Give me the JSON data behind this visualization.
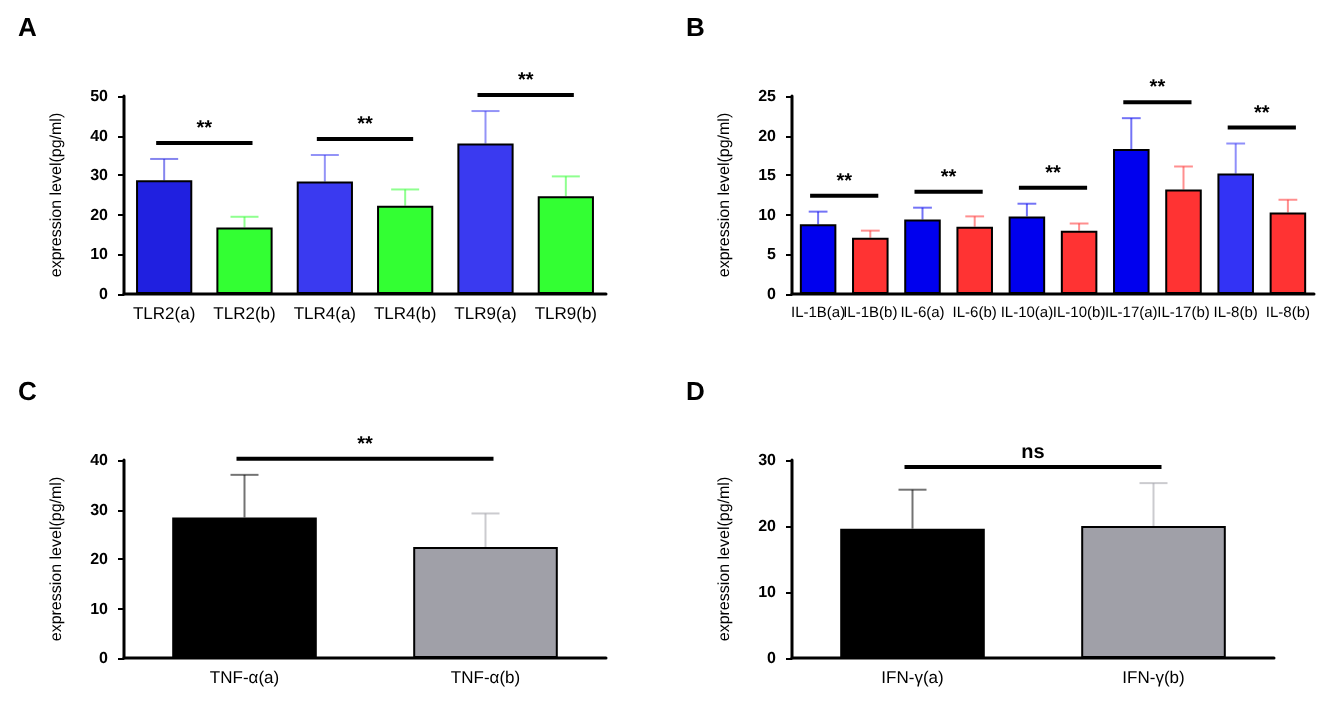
{
  "chart_data": [
    {
      "type": "bar",
      "title": "A",
      "ylabel": "expression level(pg/ml)",
      "categories": [
        "TLR2(a)",
        "TLR2(b)",
        "TLR4(a)",
        "TLR4(b)",
        "TLR9(a)",
        "TLR9(b)"
      ],
      "values": [
        28.7,
        16.8,
        28.4,
        22.3,
        38,
        24.7
      ],
      "colors": [
        "#2020e0",
        "#33ff33",
        "#3a3af0",
        "#33ff33",
        "#3a3af0",
        "#33ff33"
      ],
      "errors": [
        [
          28.7,
          34.1
        ],
        [
          16.8,
          19.5
        ],
        [
          28.4,
          35.1
        ],
        [
          22.3,
          26.4
        ],
        [
          38,
          46.2
        ],
        [
          24.7,
          29.7
        ]
      ],
      "ylim": [
        0,
        50
      ],
      "yticks": [
        0,
        10,
        20,
        30,
        40,
        50
      ],
      "grid": false,
      "annotations": [
        "**",
        "**",
        "**"
      ]
    },
    {
      "type": "bar",
      "title": "B",
      "ylabel": "expression level(pg/ml)",
      "categories": [
        "IL-1B(a)",
        "IL-1B(b)",
        "IL-6(a)",
        "IL-6(b)",
        "IL-10(a)",
        "IL-10(b)",
        "IL-17(a)",
        "IL-17(b)",
        "IL-8(b)",
        "IL-8(b)"
      ],
      "values": [
        8.8,
        7.1,
        9.4,
        8.5,
        9.8,
        8.0,
        18.3,
        13.2,
        15.2,
        10.3
      ],
      "colors": [
        "#0000ee",
        "#ff3333",
        "#0000ee",
        "#ff3333",
        "#0000ee",
        "#ff3333",
        "#0000ee",
        "#ff3333",
        "#3333f5",
        "#ff3333"
      ],
      "errors": [
        [
          8.8,
          10.4
        ],
        [
          7.1,
          8.0
        ],
        [
          9.4,
          10.9
        ],
        [
          8.5,
          9.8
        ],
        [
          9.8,
          11.4
        ],
        [
          8.0,
          8.9
        ],
        [
          18.3,
          22.2
        ],
        [
          13.2,
          16.1
        ],
        [
          15.2,
          19.0
        ],
        [
          10.3,
          11.9
        ]
      ],
      "ylim": [
        0,
        25
      ],
      "yticks": [
        0,
        5,
        10,
        15,
        20,
        25
      ],
      "grid": false,
      "annotations": [
        "**",
        "**",
        "**",
        "**",
        "**"
      ]
    },
    {
      "type": "bar",
      "title": "C",
      "ylabel": "expression level(pg/ml)",
      "categories": [
        "TNF-α(a)",
        "TNF-α(b)"
      ],
      "values": [
        28.4,
        22.4
      ],
      "colors": [
        "#000000",
        "#a0a0a8"
      ],
      "errors": [
        [
          28.4,
          37.0
        ],
        [
          22.4,
          29.2
        ]
      ],
      "ylim": [
        0,
        40
      ],
      "yticks": [
        0,
        10,
        20,
        30,
        40
      ],
      "grid": false,
      "annotations": [
        "**"
      ]
    },
    {
      "type": "bar",
      "title": "D",
      "ylabel": "expression level(pg/ml)",
      "categories": [
        "IFN-γ(a)",
        "IFN-γ(b)"
      ],
      "values": [
        19.6,
        20.0
      ],
      "colors": [
        "#000000",
        "#a0a0a8"
      ],
      "errors": [
        [
          19.6,
          25.5
        ],
        [
          20.0,
          26.5
        ]
      ],
      "ylim": [
        0,
        30
      ],
      "yticks": [
        0,
        10,
        20,
        30
      ],
      "grid": false,
      "annotations": [
        "ns"
      ]
    }
  ]
}
